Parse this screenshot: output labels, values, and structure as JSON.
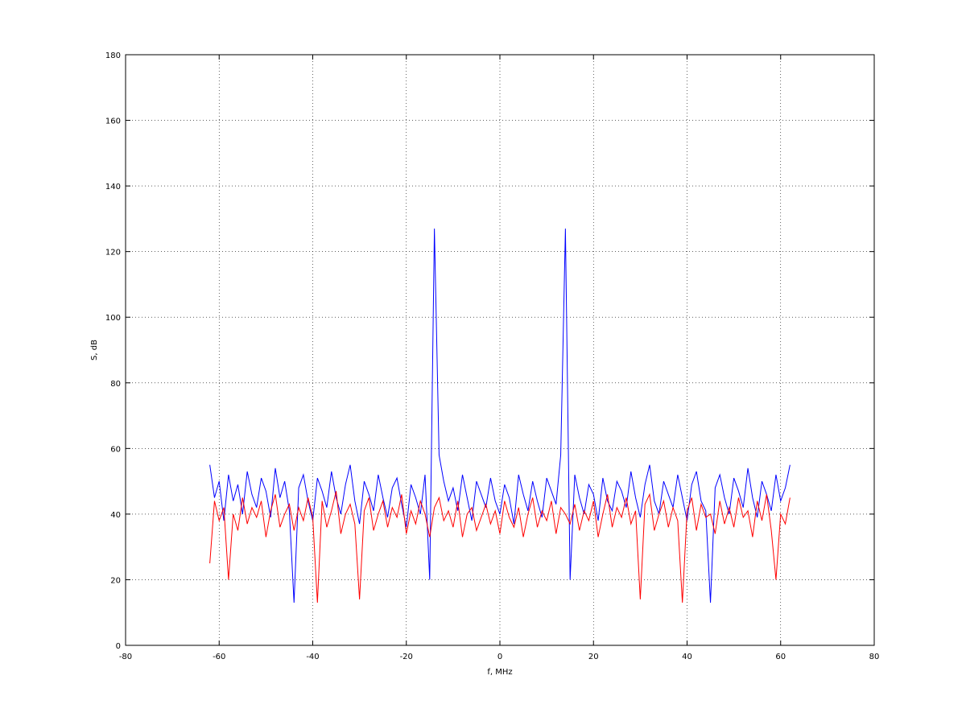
{
  "chart_data": {
    "type": "line",
    "xlabel": "f, MHz",
    "ylabel": "S, dB",
    "x": [
      -62,
      -61,
      -60,
      -59,
      -58,
      -57,
      -56,
      -55,
      -54,
      -53,
      -52,
      -51,
      -50,
      -49,
      -48,
      -47,
      -46,
      -45,
      -44,
      -43,
      -42,
      -41,
      -40,
      -39,
      -38,
      -37,
      -36,
      -35,
      -34,
      -33,
      -32,
      -31,
      -30,
      -29,
      -28,
      -27,
      -26,
      -25,
      -24,
      -23,
      -22,
      -21,
      -20,
      -19,
      -18,
      -17,
      -16,
      -15,
      -14,
      -13,
      -12,
      -11,
      -10,
      -9,
      -8,
      -7,
      -6,
      -5,
      -4,
      -3,
      -2,
      -1,
      0,
      1,
      2,
      3,
      4,
      5,
      6,
      7,
      8,
      9,
      10,
      11,
      12,
      13,
      14,
      15,
      16,
      17,
      18,
      19,
      20,
      21,
      22,
      23,
      24,
      25,
      26,
      27,
      28,
      29,
      30,
      31,
      32,
      33,
      34,
      35,
      36,
      37,
      38,
      39,
      40,
      41,
      42,
      43,
      44,
      45,
      46,
      47,
      48,
      49,
      50,
      51,
      52,
      53,
      54,
      55,
      56,
      57,
      58,
      59,
      60,
      61,
      62
    ],
    "series": [
      {
        "color": "#0000ff",
        "values": [
          55,
          45,
          50,
          38,
          52,
          44,
          49,
          40,
          53,
          46,
          42,
          51,
          47,
          39,
          54,
          45,
          50,
          41,
          13,
          48,
          52,
          44,
          38,
          51,
          47,
          42,
          53,
          45,
          40,
          49,
          55,
          44,
          37,
          50,
          46,
          41,
          52,
          45,
          39,
          48,
          51,
          43,
          36,
          49,
          45,
          40,
          52,
          20,
          127,
          58,
          50,
          44,
          48,
          41,
          52,
          45,
          38,
          50,
          46,
          42,
          51,
          44,
          40,
          49,
          45,
          37,
          52,
          46,
          41,
          50,
          44,
          39,
          51,
          47,
          43,
          58,
          127,
          20,
          52,
          45,
          40,
          49,
          46,
          38,
          51,
          44,
          41,
          50,
          47,
          42,
          53,
          45,
          39,
          49,
          55,
          44,
          40,
          50,
          46,
          42,
          52,
          45,
          38,
          49,
          53,
          44,
          41,
          13,
          48,
          52,
          45,
          40,
          51,
          47,
          42,
          54,
          45,
          39,
          50,
          46,
          41,
          52,
          44,
          48,
          55
        ]
      },
      {
        "color": "#ff0000",
        "values": [
          25,
          44,
          38,
          42,
          20,
          40,
          35,
          45,
          37,
          42,
          39,
          44,
          33,
          41,
          46,
          36,
          40,
          43,
          35,
          42,
          38,
          45,
          39,
          13,
          44,
          36,
          41,
          47,
          34,
          40,
          43,
          37,
          14,
          41,
          45,
          35,
          40,
          44,
          36,
          42,
          39,
          46,
          34,
          41,
          37,
          44,
          40,
          33,
          42,
          45,
          38,
          41,
          36,
          44,
          33,
          40,
          42,
          35,
          39,
          43,
          37,
          41,
          34,
          44,
          39,
          36,
          42,
          33,
          40,
          45,
          36,
          41,
          38,
          44,
          34,
          42,
          40,
          37,
          43,
          35,
          41,
          38,
          44,
          33,
          40,
          46,
          36,
          42,
          39,
          45,
          37,
          41,
          14,
          43,
          46,
          35,
          40,
          44,
          36,
          42,
          38,
          13,
          41,
          45,
          35,
          43,
          39,
          40,
          34,
          44,
          37,
          42,
          36,
          45,
          39,
          41,
          33,
          44,
          38,
          46,
          35,
          20,
          40,
          37,
          45
        ]
      }
    ],
    "xlim": [
      -80,
      80
    ],
    "ylim": [
      0,
      180
    ],
    "xticks": [
      -80,
      -60,
      -40,
      -20,
      0,
      20,
      40,
      60,
      80
    ],
    "yticks": [
      0,
      20,
      40,
      60,
      80,
      100,
      120,
      140,
      160,
      180
    ],
    "grid": true
  }
}
